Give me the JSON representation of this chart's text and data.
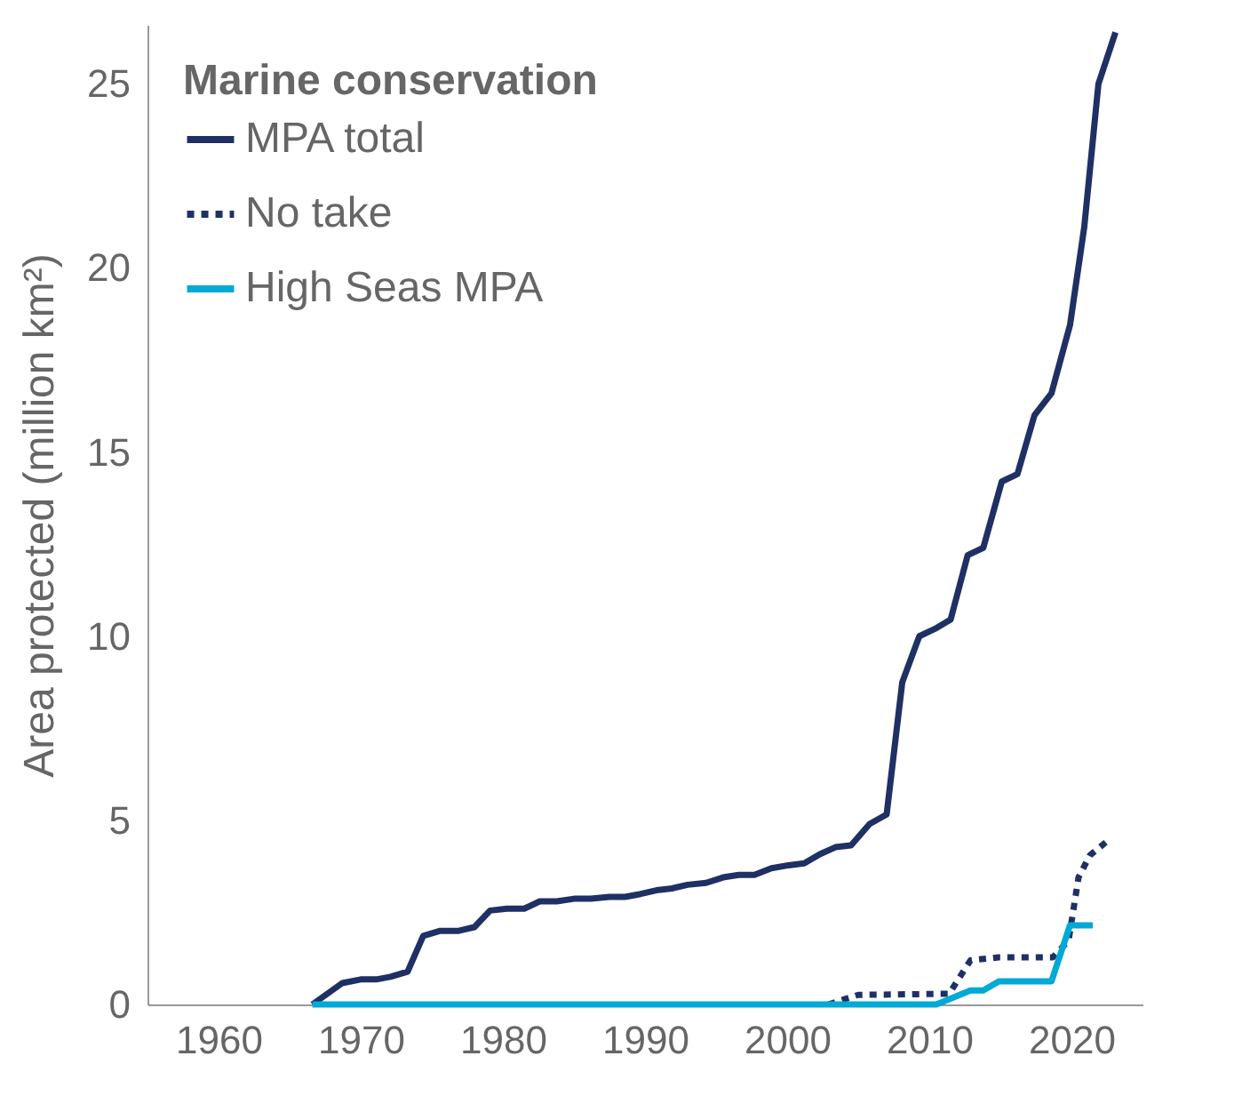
{
  "chart_data": {
    "type": "line",
    "ylabel": "Area protected (million km²)",
    "legend_title": "Marine conservation",
    "legend": "top left",
    "grid": false,
    "marker": "none",
    "xlim": [
      1955,
      2025
    ],
    "xticks": [
      1960,
      1970,
      1980,
      1990,
      2000,
      2010,
      2020
    ],
    "ylim": [
      0,
      26.6
    ],
    "yticks": [
      0,
      5,
      10,
      15,
      20,
      25
    ],
    "series": [
      {
        "name": "MPA total",
        "color": "#1f3064",
        "line_style": "solid",
        "x": [
          1966.6,
          1968.7,
          1970.0,
          1971.1,
          1972.1,
          1973.3,
          1974.4,
          1975.6,
          1976.9,
          1978.0,
          1979.1,
          1980.3,
          1981.5,
          1982.6,
          1983.8,
          1985.0,
          1986.2,
          1987.5,
          1988.6,
          1989.7,
          1990.8,
          1991.9,
          1993.0,
          1994.3,
          1995.5,
          1996.6,
          1997.7,
          1998.9,
          2000.1,
          2001.2,
          2002.3,
          2003.4,
          2004.5,
          2005.8,
          2007.0,
          2008.1,
          2009.3,
          2010.4,
          2011.5,
          2012.7,
          2013.8,
          2015.1,
          2016.2,
          2017.4,
          2018.6,
          2019.9,
          2020.9,
          2021.9,
          2023.1
        ],
        "values": [
          0,
          0.58,
          0.68,
          0.68,
          0.75,
          0.89,
          1.86,
          2.0,
          2.0,
          2.1,
          2.55,
          2.6,
          2.6,
          2.8,
          2.8,
          2.87,
          2.87,
          2.92,
          2.92,
          3.0,
          3.1,
          3.15,
          3.25,
          3.3,
          3.45,
          3.52,
          3.52,
          3.7,
          3.78,
          3.83,
          4.08,
          4.27,
          4.32,
          4.9,
          5.16,
          8.75,
          10.0,
          10.2,
          10.45,
          12.2,
          12.4,
          14.2,
          14.4,
          16.0,
          16.6,
          18.45,
          21.1,
          25.0,
          26.4
        ]
      },
      {
        "name": "No take",
        "color": "#1f3064",
        "line_style": "dotted",
        "x": [
          2002.9,
          2005.0,
          2011.4,
          2012.9,
          2014.9,
          2018.7,
          2019.8,
          2020.5,
          2021.3,
          2022.5
        ],
        "values": [
          0,
          0.26,
          0.29,
          1.2,
          1.28,
          1.28,
          1.74,
          3.45,
          4.05,
          4.43
        ]
      },
      {
        "name": "High Seas MPA",
        "color": "#00a9d6",
        "line_style": "solid",
        "x": [
          1966.6,
          2010.5,
          2012.9,
          2013.8,
          2014.9,
          2018.6,
          2019.9,
          2021.5
        ],
        "values": [
          0,
          0,
          0.38,
          0.38,
          0.63,
          0.63,
          2.15,
          2.15
        ]
      }
    ]
  }
}
